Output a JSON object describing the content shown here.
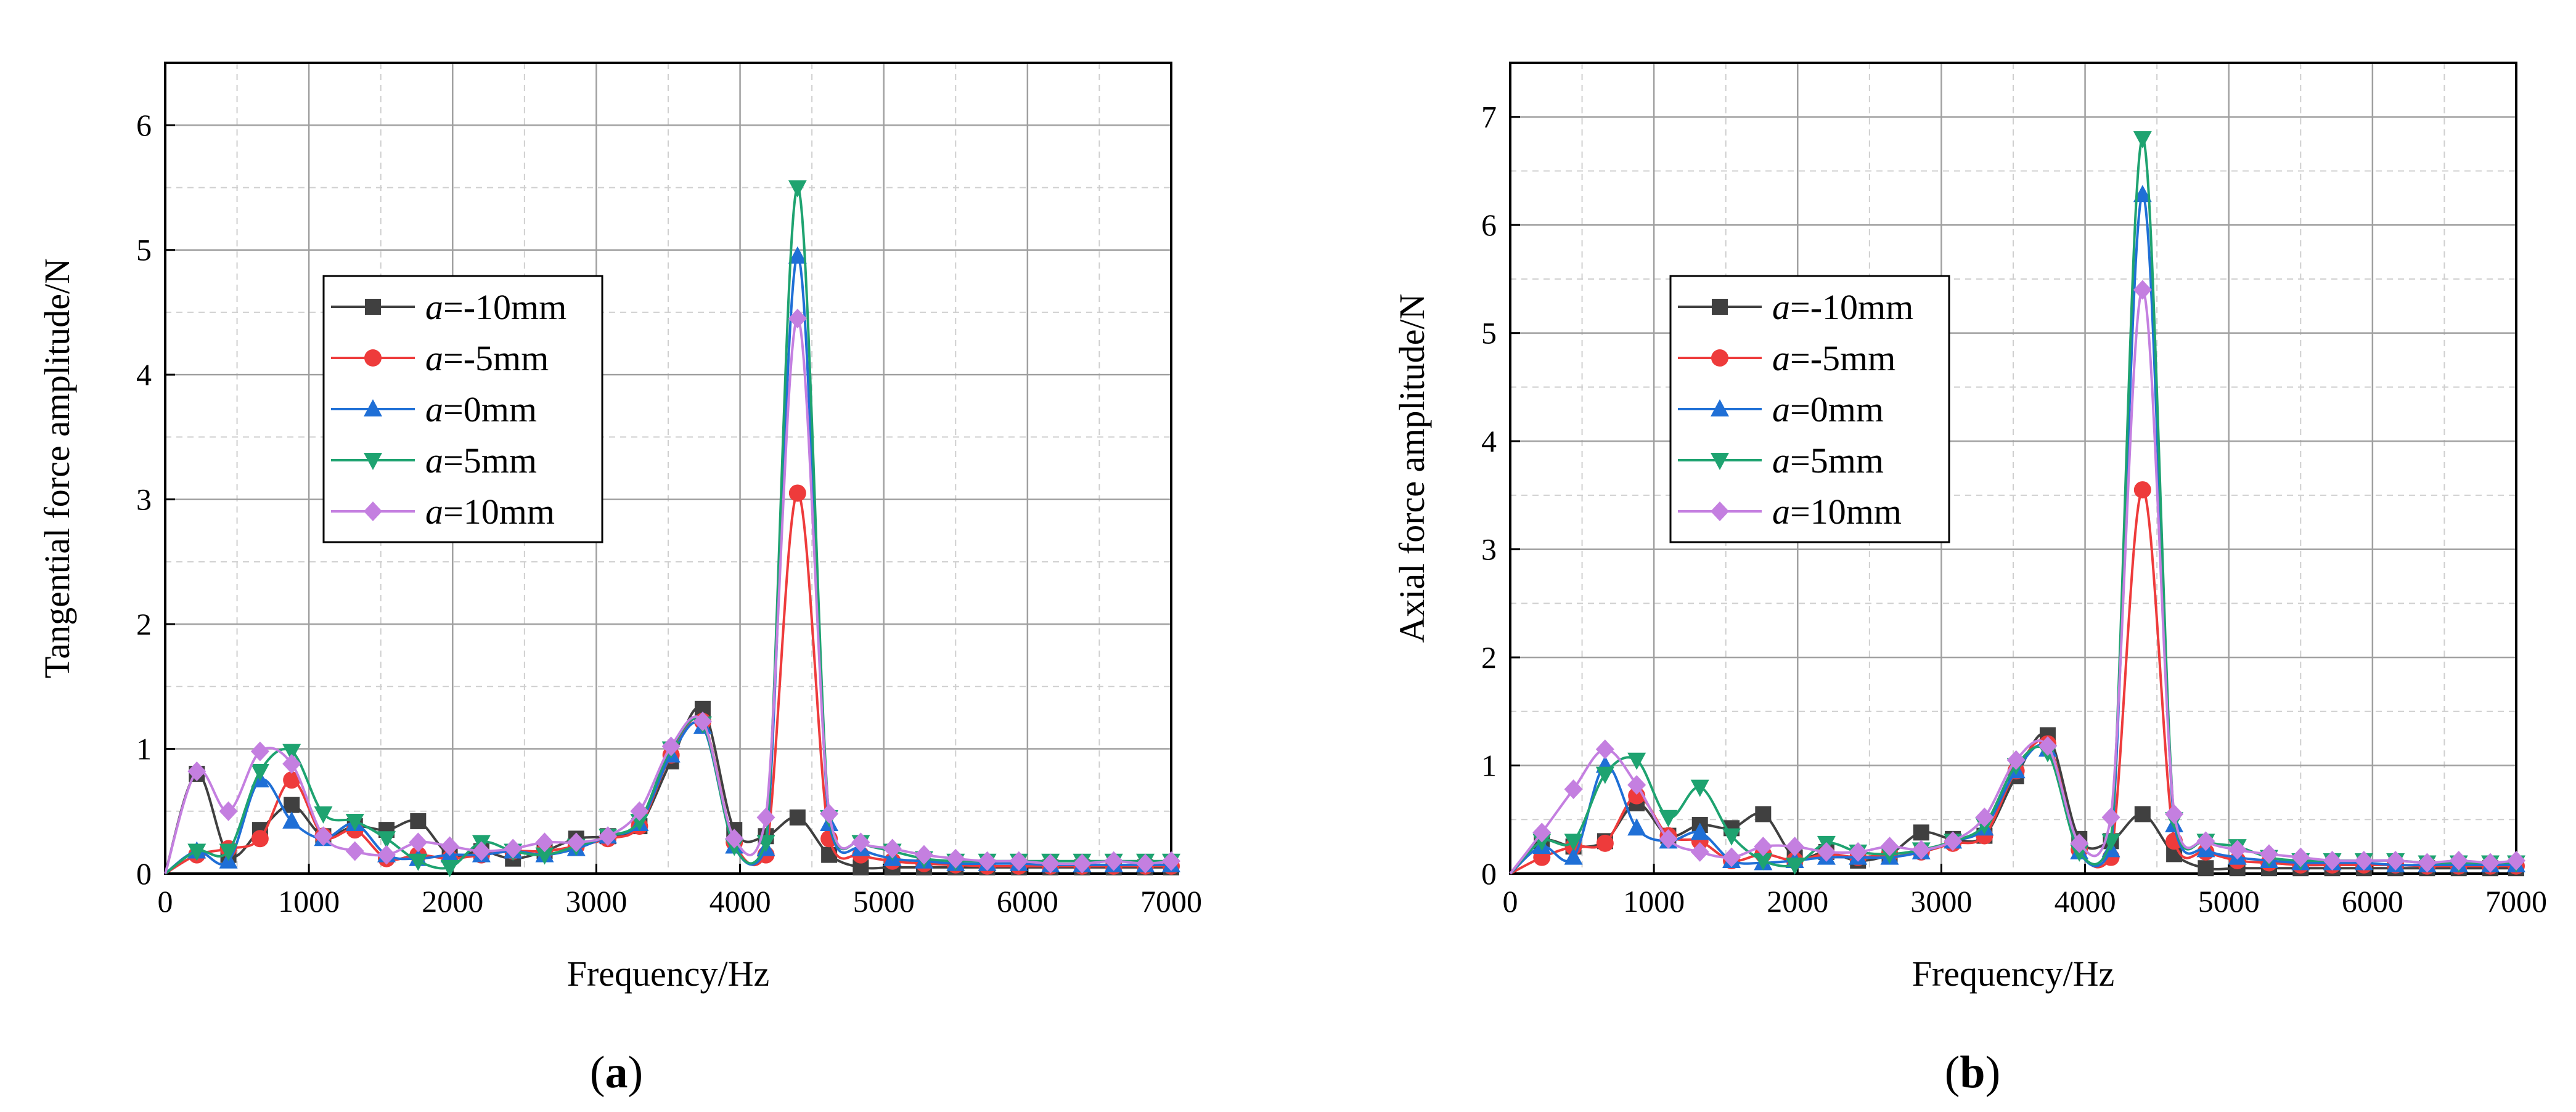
{
  "figure_labels": [
    "(a)",
    "(b)"
  ],
  "chart_data": [
    {
      "type": "line",
      "panel": "(a)",
      "xlabel": "Frequency/Hz",
      "ylabel": "Tangential force amplitude/N",
      "xlim": [
        0,
        7000
      ],
      "ylim": [
        0,
        6.5
      ],
      "xticks": [
        0,
        1000,
        2000,
        3000,
        4000,
        5000,
        6000,
        7000
      ],
      "yticks": [
        0,
        1,
        2,
        3,
        4,
        5,
        6
      ],
      "grid": true,
      "legend_position": "left-middle",
      "x": [
        0,
        220,
        440,
        660,
        880,
        1100,
        1320,
        1540,
        1760,
        1980,
        2200,
        2420,
        2640,
        2860,
        3080,
        3300,
        3520,
        3740,
        3960,
        4180,
        4400,
        4620,
        4840,
        5060,
        5280,
        5500,
        5720,
        5940,
        6160,
        6380,
        6600,
        6820,
        7000
      ],
      "series": [
        {
          "name": "a=-10mm",
          "prefix": "a",
          "suffix": "=-10mm",
          "color": "#404040",
          "marker": "square",
          "values": [
            0.0,
            0.8,
            0.15,
            0.35,
            0.55,
            0.3,
            0.38,
            0.35,
            0.42,
            0.15,
            0.18,
            0.12,
            0.18,
            0.28,
            0.3,
            0.38,
            0.9,
            1.32,
            0.35,
            0.3,
            0.45,
            0.15,
            0.05,
            0.05,
            0.05,
            0.05,
            0.05,
            0.05,
            0.05,
            0.05,
            0.05,
            0.05,
            0.05
          ]
        },
        {
          "name": "a=-5mm",
          "prefix": "a",
          "suffix": "=-5mm",
          "color": "#ee3b3b",
          "marker": "circle",
          "values": [
            0.0,
            0.15,
            0.2,
            0.28,
            0.75,
            0.3,
            0.35,
            0.12,
            0.15,
            0.12,
            0.15,
            0.18,
            0.18,
            0.22,
            0.28,
            0.38,
            0.95,
            1.22,
            0.25,
            0.15,
            3.05,
            0.28,
            0.15,
            0.1,
            0.08,
            0.07,
            0.06,
            0.06,
            0.06,
            0.06,
            0.06,
            0.06,
            0.06
          ]
        },
        {
          "name": "a=0mm",
          "prefix": "a",
          "suffix": "=0mm",
          "color": "#1f6fd6",
          "marker": "triangle-up",
          "values": [
            0.0,
            0.18,
            0.1,
            0.75,
            0.42,
            0.28,
            0.4,
            0.15,
            0.12,
            0.15,
            0.15,
            0.18,
            0.15,
            0.2,
            0.3,
            0.4,
            0.95,
            1.18,
            0.22,
            0.2,
            4.95,
            0.4,
            0.2,
            0.12,
            0.1,
            0.08,
            0.08,
            0.08,
            0.07,
            0.07,
            0.07,
            0.07,
            0.07
          ]
        },
        {
          "name": "a=5mm",
          "prefix": "a",
          "suffix": "=5mm",
          "color": "#1ea370",
          "marker": "triangle-down",
          "values": [
            0.0,
            0.18,
            0.18,
            0.82,
            0.98,
            0.48,
            0.42,
            0.28,
            0.1,
            0.05,
            0.25,
            0.18,
            0.15,
            0.22,
            0.3,
            0.42,
            1.0,
            1.2,
            0.22,
            0.25,
            5.5,
            0.45,
            0.25,
            0.18,
            0.12,
            0.1,
            0.1,
            0.1,
            0.1,
            0.1,
            0.1,
            0.1,
            0.1
          ]
        },
        {
          "name": "a=10mm",
          "prefix": "a",
          "suffix": "=10mm",
          "color": "#c47fe0",
          "marker": "diamond",
          "values": [
            0.0,
            0.82,
            0.5,
            0.98,
            0.88,
            0.3,
            0.18,
            0.15,
            0.25,
            0.22,
            0.18,
            0.2,
            0.25,
            0.25,
            0.3,
            0.5,
            1.02,
            1.22,
            0.28,
            0.45,
            4.45,
            0.48,
            0.25,
            0.2,
            0.15,
            0.12,
            0.1,
            0.1,
            0.08,
            0.08,
            0.1,
            0.08,
            0.1
          ]
        }
      ]
    },
    {
      "type": "line",
      "panel": "(b)",
      "xlabel": "Frequency/Hz",
      "ylabel": "Axial force amplitude/N",
      "xlim": [
        0,
        7000
      ],
      "ylim": [
        0,
        7.5
      ],
      "xticks": [
        0,
        1000,
        2000,
        3000,
        4000,
        5000,
        6000,
        7000
      ],
      "yticks": [
        0,
        1,
        2,
        3,
        4,
        5,
        6,
        7
      ],
      "grid": true,
      "legend_position": "left-middle",
      "x": [
        0,
        220,
        440,
        660,
        880,
        1100,
        1320,
        1540,
        1760,
        1980,
        2200,
        2420,
        2640,
        2860,
        3080,
        3300,
        3520,
        3740,
        3960,
        4180,
        4400,
        4620,
        4840,
        5060,
        5280,
        5500,
        5720,
        5940,
        6160,
        6380,
        6600,
        6820,
        7000
      ],
      "series": [
        {
          "name": "a=-10mm",
          "prefix": "a",
          "suffix": "=-10mm",
          "color": "#404040",
          "marker": "square",
          "values": [
            0.0,
            0.3,
            0.25,
            0.3,
            0.65,
            0.35,
            0.45,
            0.42,
            0.55,
            0.15,
            0.2,
            0.12,
            0.18,
            0.38,
            0.32,
            0.35,
            0.9,
            1.28,
            0.32,
            0.3,
            0.55,
            0.18,
            0.05,
            0.05,
            0.05,
            0.05,
            0.05,
            0.05,
            0.05,
            0.05,
            0.05,
            0.05,
            0.05
          ]
        },
        {
          "name": "a=-5mm",
          "prefix": "a",
          "suffix": "=-5mm",
          "color": "#ee3b3b",
          "marker": "circle",
          "values": [
            0.0,
            0.15,
            0.25,
            0.28,
            0.72,
            0.35,
            0.3,
            0.12,
            0.18,
            0.12,
            0.18,
            0.15,
            0.18,
            0.2,
            0.28,
            0.35,
            0.95,
            1.2,
            0.22,
            0.15,
            3.55,
            0.3,
            0.2,
            0.12,
            0.1,
            0.08,
            0.08,
            0.08,
            0.08,
            0.07,
            0.07,
            0.07,
            0.07
          ]
        },
        {
          "name": "a=0mm",
          "prefix": "a",
          "suffix": "=0mm",
          "color": "#1f6fd6",
          "marker": "triangle-up",
          "values": [
            0.0,
            0.25,
            0.15,
            1.0,
            0.42,
            0.3,
            0.38,
            0.12,
            0.1,
            0.12,
            0.15,
            0.15,
            0.15,
            0.2,
            0.3,
            0.42,
            0.95,
            1.15,
            0.2,
            0.22,
            6.28,
            0.45,
            0.22,
            0.15,
            0.12,
            0.1,
            0.1,
            0.1,
            0.08,
            0.08,
            0.08,
            0.08,
            0.08
          ]
        },
        {
          "name": "a=5mm",
          "prefix": "a",
          "suffix": "=5mm",
          "color": "#1ea370",
          "marker": "triangle-down",
          "values": [
            0.0,
            0.3,
            0.3,
            0.92,
            1.05,
            0.52,
            0.8,
            0.35,
            0.12,
            0.08,
            0.28,
            0.2,
            0.18,
            0.22,
            0.3,
            0.45,
            1.0,
            1.12,
            0.2,
            0.3,
            6.8,
            0.5,
            0.3,
            0.25,
            0.15,
            0.12,
            0.12,
            0.12,
            0.12,
            0.1,
            0.1,
            0.1,
            0.1
          ]
        },
        {
          "name": "a=10mm",
          "prefix": "a",
          "suffix": "=10mm",
          "color": "#c47fe0",
          "marker": "diamond",
          "values": [
            0.0,
            0.38,
            0.78,
            1.15,
            0.82,
            0.32,
            0.2,
            0.15,
            0.25,
            0.25,
            0.2,
            0.2,
            0.25,
            0.22,
            0.3,
            0.52,
            1.05,
            1.18,
            0.28,
            0.52,
            5.4,
            0.55,
            0.3,
            0.22,
            0.18,
            0.15,
            0.12,
            0.12,
            0.12,
            0.1,
            0.12,
            0.1,
            0.12
          ]
        }
      ]
    }
  ]
}
